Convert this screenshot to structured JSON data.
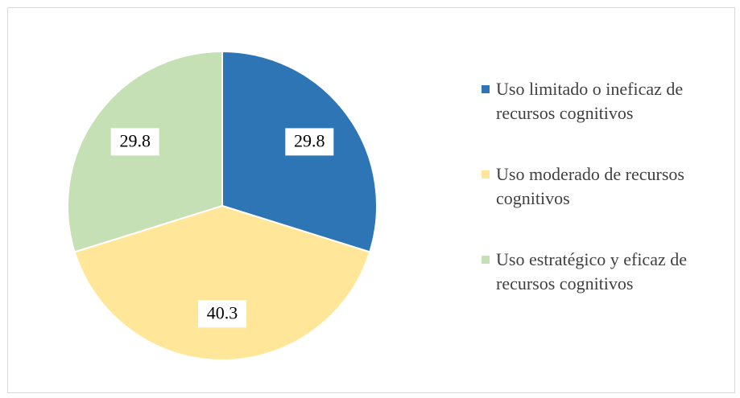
{
  "chart_data": {
    "type": "pie",
    "categories": [
      "Uso limitado o ineficaz de recursos cognitivos",
      "Uso moderado de recursos cognitivos",
      "Uso estratégico y eficaz de recursos cognitivos"
    ],
    "values": [
      29.8,
      40.3,
      29.8
    ],
    "colors": [
      "#2e75b6",
      "#ffe699",
      "#c5e0b4"
    ],
    "legend": "right"
  }
}
